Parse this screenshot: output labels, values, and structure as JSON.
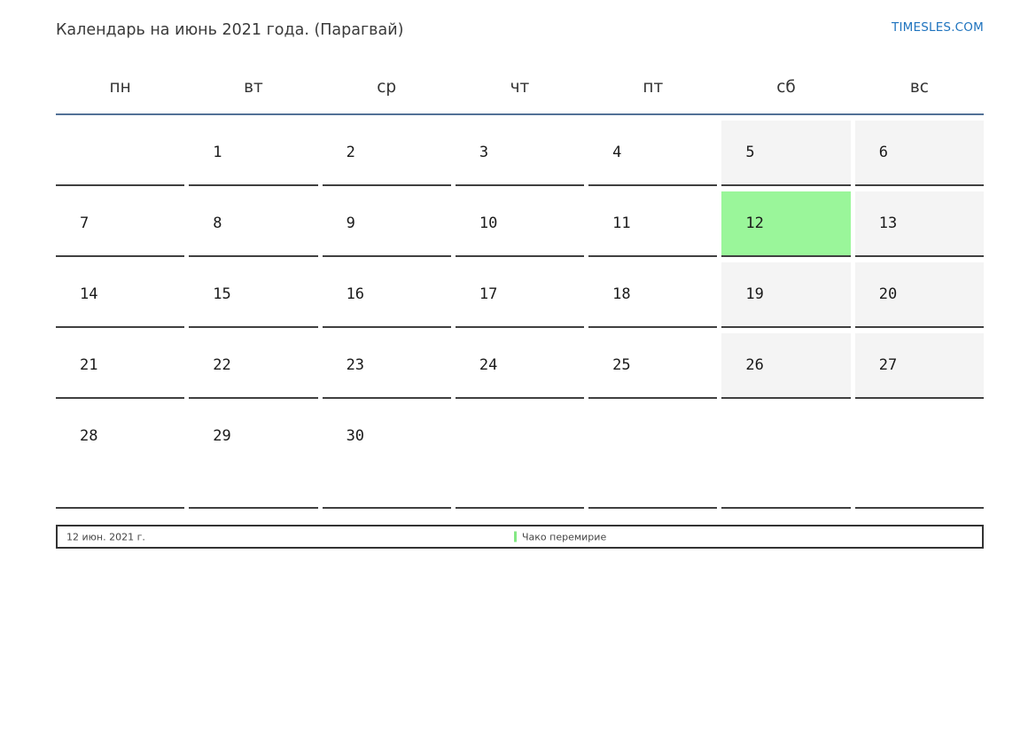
{
  "header": {
    "title": "Календарь на июнь 2021 года. (Парагвай)",
    "site_link": "TIMESLES.COM"
  },
  "calendar": {
    "month_year": "июнь 2021",
    "country": "Парагвай",
    "weekdays": [
      "пн",
      "вт",
      "ср",
      "чт",
      "пт",
      "сб",
      "вс"
    ],
    "weeks": [
      [
        {
          "day": ""
        },
        {
          "day": "1"
        },
        {
          "day": "2"
        },
        {
          "day": "3"
        },
        {
          "day": "4"
        },
        {
          "day": "5",
          "weekend": true
        },
        {
          "day": "6",
          "weekend": true
        }
      ],
      [
        {
          "day": "7"
        },
        {
          "day": "8"
        },
        {
          "day": "9"
        },
        {
          "day": "10"
        },
        {
          "day": "11"
        },
        {
          "day": "12",
          "highlight": true
        },
        {
          "day": "13",
          "weekend": true
        }
      ],
      [
        {
          "day": "14"
        },
        {
          "day": "15"
        },
        {
          "day": "16"
        },
        {
          "day": "17"
        },
        {
          "day": "18"
        },
        {
          "day": "19",
          "weekend": true
        },
        {
          "day": "20",
          "weekend": true
        }
      ],
      [
        {
          "day": "21"
        },
        {
          "day": "22"
        },
        {
          "day": "23"
        },
        {
          "day": "24"
        },
        {
          "day": "25"
        },
        {
          "day": "26",
          "weekend": true
        },
        {
          "day": "27",
          "weekend": true
        }
      ],
      [
        {
          "day": "28"
        },
        {
          "day": "29"
        },
        {
          "day": "30"
        },
        {
          "day": ""
        },
        {
          "day": ""
        },
        {
          "day": ""
        },
        {
          "day": ""
        }
      ]
    ],
    "highlighted_day": "12"
  },
  "footer": {
    "date_label": "12 июн. 2021 г.",
    "legend_label": "Чако перемирие"
  },
  "colors": {
    "accent_rule": "#537197",
    "weekend_bg": "#f4f4f4",
    "highlight_bg": "#9af69a",
    "legend_marker": "#84e884",
    "link": "#1e73be",
    "cell_border": "#404040"
  }
}
